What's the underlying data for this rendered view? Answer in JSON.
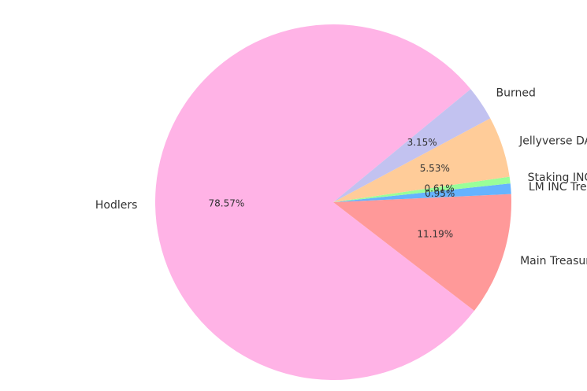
{
  "chart_data": {
    "type": "pie",
    "slices": [
      {
        "label": "Hodlers",
        "value": 78.57,
        "pct_label": "78.57%",
        "color": "#ffb3e6"
      },
      {
        "label": "Main Treasury",
        "value": 11.19,
        "pct_label": "11.19%",
        "color": "#ff9999"
      },
      {
        "label": "LM INC Treasury",
        "value": 0.95,
        "pct_label": "0.95%",
        "color": "#66b3ff"
      },
      {
        "label": "Staking INC Treasury",
        "value": 0.61,
        "pct_label": "0.61%",
        "color": "#99ff99"
      },
      {
        "label": "Jellyverse DAO",
        "value": 5.53,
        "pct_label": "5.53%",
        "color": "#ffcc99"
      },
      {
        "label": "Burned",
        "value": 3.15,
        "pct_label": "3.15%",
        "color": "#c2c2f0"
      }
    ],
    "start_angle_deg": 39.5,
    "direction": "counterclockwise"
  }
}
